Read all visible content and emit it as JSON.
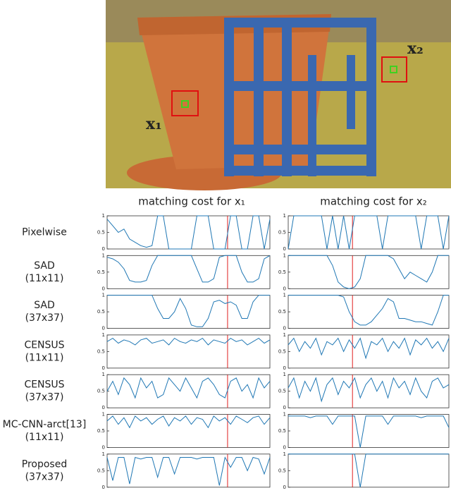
{
  "figure": {
    "photo_labels": [
      "x₁",
      "x₂"
    ],
    "column_headers": [
      "matching cost for x₁",
      "matching cost for x₂"
    ],
    "row_labels": [
      [
        "Pixelwise"
      ],
      [
        "SAD",
        "(11x11)"
      ],
      [
        "SAD",
        "(37x37)"
      ],
      [
        "CENSUS",
        "(11x11)"
      ],
      [
        "CENSUS",
        "(37x37)"
      ],
      [
        "MC-CNN-arct[13]",
        "(11x11)"
      ],
      [
        "Proposed",
        "(37x37)"
      ]
    ]
  },
  "chart_data": [
    {
      "type": "line",
      "color": "#1f77b4",
      "ylim": [
        0,
        1
      ],
      "yticks": [
        0,
        0.5,
        1
      ],
      "values": [
        0.9,
        0.7,
        0.5,
        0.6,
        0.3,
        0.2,
        0.1,
        0.05,
        0.1,
        1,
        1,
        0,
        0,
        0,
        0,
        0,
        1,
        1,
        1,
        0,
        0,
        0,
        1,
        1,
        0,
        0,
        1,
        1,
        0,
        0.9
      ]
    },
    {
      "type": "line",
      "color": "#1f77b4",
      "ylim": [
        0,
        1
      ],
      "yticks": [
        0,
        0.5,
        1
      ],
      "values": [
        0,
        1,
        1,
        1,
        1,
        1,
        1,
        0,
        1,
        0,
        1,
        0,
        1,
        1,
        1,
        1,
        1,
        0,
        1,
        1,
        1,
        1,
        1,
        1,
        0,
        1,
        1,
        1,
        0,
        1
      ]
    },
    {
      "type": "line",
      "color": "#1f77b4",
      "ylim": [
        0,
        1
      ],
      "yticks": [
        0,
        0.5,
        1
      ],
      "values": [
        0.95,
        0.9,
        0.8,
        0.6,
        0.25,
        0.2,
        0.2,
        0.25,
        0.7,
        1,
        1,
        1,
        1,
        1,
        1,
        1,
        0.6,
        0.2,
        0.2,
        0.3,
        0.95,
        1,
        1,
        1,
        0.5,
        0.2,
        0.2,
        0.3,
        0.9,
        1
      ]
    },
    {
      "type": "line",
      "color": "#1f77b4",
      "ylim": [
        0,
        1
      ],
      "yticks": [
        0,
        0.5,
        1
      ],
      "values": [
        1,
        1,
        1,
        1,
        1,
        1,
        1,
        1,
        0.7,
        0.2,
        0.05,
        0,
        0.05,
        0.3,
        1,
        1,
        1,
        1,
        1,
        0.9,
        0.6,
        0.3,
        0.5,
        0.4,
        0.3,
        0.2,
        0.5,
        1,
        1,
        1
      ]
    },
    {
      "type": "line",
      "color": "#1f77b4",
      "ylim": [
        0,
        1
      ],
      "yticks": [
        0,
        0.5,
        1
      ],
      "values": [
        1,
        1,
        1,
        1,
        1,
        1,
        1,
        1,
        1,
        0.6,
        0.3,
        0.3,
        0.5,
        0.9,
        0.6,
        0.1,
        0.05,
        0.05,
        0.3,
        0.8,
        0.85,
        0.75,
        0.8,
        0.7,
        0.3,
        0.3,
        0.8,
        1,
        1,
        1
      ]
    },
    {
      "type": "line",
      "color": "#1f77b4",
      "ylim": [
        0,
        1
      ],
      "yticks": [
        0,
        0.5,
        1
      ],
      "values": [
        1,
        1,
        1,
        1,
        1,
        1,
        1,
        1,
        1,
        1,
        0.95,
        0.5,
        0.2,
        0.1,
        0.1,
        0.2,
        0.4,
        0.6,
        0.9,
        0.8,
        0.3,
        0.3,
        0.25,
        0.2,
        0.2,
        0.15,
        0.1,
        0.5,
        1,
        1
      ]
    },
    {
      "type": "line",
      "color": "#1f77b4",
      "ylim": [
        0,
        1
      ],
      "yticks": [
        0,
        0.5,
        1
      ],
      "values": [
        0.8,
        0.9,
        0.75,
        0.85,
        0.8,
        0.7,
        0.85,
        0.9,
        0.75,
        0.8,
        0.85,
        0.7,
        0.9,
        0.8,
        0.75,
        0.85,
        0.8,
        0.9,
        0.7,
        0.85,
        0.8,
        0.75,
        0.9,
        0.8,
        0.85,
        0.7,
        0.8,
        0.9,
        0.75,
        0.85
      ]
    },
    {
      "type": "line",
      "color": "#1f77b4",
      "ylim": [
        0,
        1
      ],
      "yticks": [
        0,
        0.5,
        1
      ],
      "values": [
        0.7,
        0.9,
        0.5,
        0.8,
        0.6,
        0.9,
        0.4,
        0.8,
        0.7,
        0.9,
        0.5,
        0.85,
        0.6,
        0.9,
        0.3,
        0.8,
        0.7,
        0.9,
        0.5,
        0.8,
        0.6,
        0.9,
        0.4,
        0.85,
        0.7,
        0.9,
        0.6,
        0.8,
        0.5,
        0.9
      ]
    },
    {
      "type": "line",
      "color": "#1f77b4",
      "ylim": [
        0,
        1
      ],
      "yticks": [
        0,
        0.5,
        1
      ],
      "values": [
        0.5,
        0.8,
        0.4,
        0.9,
        0.7,
        0.3,
        0.9,
        0.6,
        0.8,
        0.3,
        0.4,
        0.9,
        0.7,
        0.5,
        0.9,
        0.6,
        0.3,
        0.8,
        0.9,
        0.7,
        0.4,
        0.3,
        0.8,
        0.9,
        0.5,
        0.7,
        0.3,
        0.9,
        0.6,
        0.8
      ]
    },
    {
      "type": "line",
      "color": "#1f77b4",
      "ylim": [
        0,
        1
      ],
      "yticks": [
        0,
        0.5,
        1
      ],
      "values": [
        0.6,
        0.9,
        0.3,
        0.8,
        0.5,
        0.9,
        0.2,
        0.7,
        0.9,
        0.4,
        0.8,
        0.6,
        0.9,
        0.3,
        0.7,
        0.9,
        0.5,
        0.8,
        0.3,
        0.9,
        0.6,
        0.8,
        0.4,
        0.9,
        0.5,
        0.3,
        0.8,
        0.9,
        0.6,
        0.7
      ]
    },
    {
      "type": "line",
      "color": "#1f77b4",
      "ylim": [
        0,
        1
      ],
      "yticks": [
        0,
        0.5,
        1
      ],
      "values": [
        0.8,
        0.95,
        0.7,
        0.9,
        0.6,
        0.95,
        0.8,
        0.9,
        0.7,
        0.85,
        0.95,
        0.65,
        0.9,
        0.8,
        0.95,
        0.7,
        0.9,
        0.85,
        0.6,
        0.95,
        0.8,
        0.9,
        0.7,
        0.95,
        0.85,
        0.75,
        0.9,
        0.95,
        0.7,
        0.9
      ]
    },
    {
      "type": "line",
      "color": "#1f77b4",
      "ylim": [
        0,
        1
      ],
      "yticks": [
        0,
        0.5,
        1
      ],
      "values": [
        0.95,
        0.95,
        0.95,
        0.95,
        0.9,
        0.95,
        0.95,
        0.95,
        0.7,
        0.95,
        0.95,
        0.95,
        0.95,
        0,
        0.95,
        0.95,
        0.95,
        0.95,
        0.7,
        0.95,
        0.95,
        0.95,
        0.95,
        0.95,
        0.9,
        0.95,
        0.95,
        0.95,
        0.95,
        0.6
      ]
    },
    {
      "type": "line",
      "color": "#1f77b4",
      "ylim": [
        0,
        1
      ],
      "yticks": [
        0,
        0.5,
        1
      ],
      "values": [
        0.9,
        0.2,
        0.9,
        0.9,
        0.1,
        0.9,
        0.85,
        0.9,
        0.9,
        0.3,
        0.9,
        0.9,
        0.4,
        0.9,
        0.9,
        0.9,
        0.85,
        0.9,
        0.9,
        0.9,
        0.05,
        0.9,
        0.6,
        0.9,
        0.9,
        0.5,
        0.9,
        0.85,
        0.4,
        0.9
      ]
    },
    {
      "type": "line",
      "color": "#1f77b4",
      "ylim": [
        0,
        1
      ],
      "yticks": [
        0,
        0.5,
        1
      ],
      "values": [
        1,
        1,
        1,
        1,
        1,
        1,
        1,
        1,
        1,
        1,
        1,
        1,
        1,
        0,
        1,
        1,
        1,
        1,
        1,
        1,
        1,
        1,
        1,
        1,
        1,
        1,
        1,
        1,
        1,
        1
      ]
    }
  ]
}
